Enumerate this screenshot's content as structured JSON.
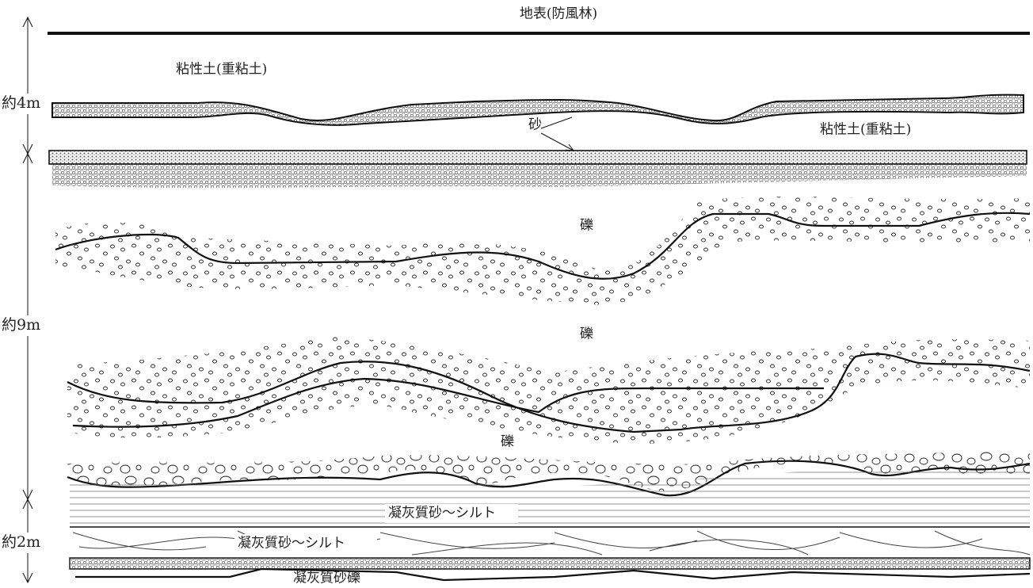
{
  "header": {
    "title": "地表(防風林)"
  },
  "depths": [
    "約4m",
    "約9m",
    "約2m"
  ],
  "layers": [
    {
      "label": "粘性土(重粘土)"
    },
    {
      "label": "砂"
    },
    {
      "label": "粘性土(重粘土)"
    },
    {
      "label": "礫"
    },
    {
      "label": "礫"
    },
    {
      "label": "礫"
    },
    {
      "label": "凝灰質砂～シルト"
    },
    {
      "label": "凝灰質砂～シルト"
    },
    {
      "label": "凝灰質砂礫"
    }
  ]
}
